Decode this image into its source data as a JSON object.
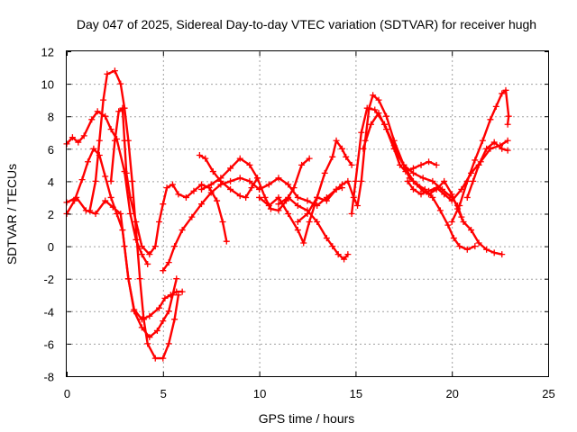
{
  "chart_data": {
    "type": "scatter",
    "marker": "plus",
    "title": "Day 047 of 2025, Sidereal Day-to-day VTEC variation (SDTVAR) for receiver hugh",
    "xlabel": "GPS time / hours",
    "ylabel": "SDTVAR / TECUs",
    "xlim": [
      0,
      25
    ],
    "ylim": [
      -8,
      12
    ],
    "xticks": [
      0,
      5,
      10,
      15,
      20,
      25
    ],
    "yticks": [
      -8,
      -6,
      -4,
      -2,
      0,
      2,
      4,
      6,
      8,
      10,
      12
    ],
    "grid": true,
    "color": "#ff0000",
    "series": [
      {
        "name": "trace-1",
        "points": [
          [
            0.0,
            6.3
          ],
          [
            0.3,
            6.7
          ],
          [
            0.6,
            6.4
          ],
          [
            0.9,
            6.8
          ],
          [
            1.3,
            7.8
          ],
          [
            1.6,
            8.3
          ],
          [
            2.0,
            8.0
          ],
          [
            2.3,
            7.2
          ],
          [
            2.6,
            6.6
          ],
          [
            3.0,
            4.6
          ],
          [
            3.3,
            2.0
          ],
          [
            3.6,
            0.4
          ],
          [
            3.9,
            -0.5
          ],
          [
            4.2,
            -1.1
          ]
        ]
      },
      {
        "name": "trace-2",
        "points": [
          [
            0.0,
            2.0
          ],
          [
            0.4,
            2.8
          ],
          [
            0.8,
            4.1
          ],
          [
            1.1,
            5.2
          ],
          [
            1.4,
            6.0
          ],
          [
            1.7,
            5.6
          ],
          [
            2.0,
            4.3
          ],
          [
            2.3,
            3.0
          ],
          [
            2.6,
            2.0
          ],
          [
            2.9,
            1.0
          ],
          [
            3.2,
            -2.0
          ],
          [
            3.5,
            -3.9
          ],
          [
            3.9,
            -4.5
          ],
          [
            4.3,
            -4.3
          ],
          [
            4.8,
            -3.8
          ],
          [
            5.1,
            -3.2
          ],
          [
            5.4,
            -3.0
          ],
          [
            5.7,
            -2.8
          ],
          [
            6.0,
            -2.8
          ]
        ]
      },
      {
        "name": "trace-3",
        "points": [
          [
            0.0,
            2.7
          ],
          [
            0.5,
            3.0
          ],
          [
            1.0,
            2.2
          ],
          [
            1.5,
            2.0
          ],
          [
            2.0,
            2.8
          ],
          [
            2.4,
            2.4
          ],
          [
            2.8,
            2.0
          ],
          [
            3.0,
            0.0
          ],
          [
            3.2,
            -2.0
          ],
          [
            3.5,
            -4.0
          ],
          [
            3.9,
            -5.0
          ],
          [
            4.3,
            -5.6
          ],
          [
            4.7,
            -5.2
          ],
          [
            5.0,
            -4.6
          ],
          [
            5.3,
            -4.0
          ],
          [
            5.5,
            -3.0
          ],
          [
            5.7,
            -2.0
          ]
        ]
      },
      {
        "name": "trace-4",
        "points": [
          [
            1.2,
            2.2
          ],
          [
            1.5,
            4.0
          ],
          [
            1.7,
            6.5
          ],
          [
            1.9,
            9.0
          ],
          [
            2.1,
            10.6
          ],
          [
            2.5,
            10.8
          ],
          [
            2.8,
            10.0
          ],
          [
            3.0,
            8.5
          ],
          [
            3.2,
            6.5
          ],
          [
            3.4,
            4.0
          ],
          [
            3.6,
            1.0
          ],
          [
            3.8,
            -2.0
          ],
          [
            4.0,
            -4.5
          ],
          [
            4.2,
            -6.0
          ],
          [
            4.6,
            -6.9
          ],
          [
            5.0,
            -6.9
          ],
          [
            5.3,
            -6.0
          ],
          [
            5.6,
            -4.5
          ],
          [
            5.8,
            -3.0
          ]
        ]
      },
      {
        "name": "trace-5",
        "points": [
          [
            2.3,
            4.0
          ],
          [
            2.5,
            6.5
          ],
          [
            2.7,
            8.3
          ],
          [
            2.9,
            8.5
          ],
          [
            3.0,
            6.5
          ],
          [
            3.1,
            4.5
          ],
          [
            3.3,
            3.0
          ],
          [
            3.6,
            1.5
          ],
          [
            3.9,
            0.0
          ],
          [
            4.3,
            -0.5
          ],
          [
            4.6,
            0.0
          ],
          [
            4.8,
            1.5
          ],
          [
            5.0,
            2.6
          ],
          [
            5.2,
            3.6
          ],
          [
            5.5,
            3.8
          ],
          [
            5.8,
            3.2
          ],
          [
            6.2,
            3.0
          ],
          [
            6.6,
            3.4
          ],
          [
            7.0,
            3.8
          ],
          [
            7.4,
            3.6
          ],
          [
            7.8,
            2.8
          ],
          [
            8.1,
            1.5
          ],
          [
            8.3,
            0.3
          ]
        ]
      },
      {
        "name": "trace-6",
        "points": [
          [
            5.0,
            -1.5
          ],
          [
            5.3,
            -1.0
          ],
          [
            5.6,
            0.0
          ],
          [
            6.0,
            1.0
          ],
          [
            6.5,
            1.8
          ],
          [
            7.0,
            2.6
          ],
          [
            7.5,
            3.3
          ],
          [
            8.0,
            3.8
          ],
          [
            8.5,
            4.0
          ],
          [
            9.0,
            4.2
          ],
          [
            9.5,
            4.0
          ],
          [
            10.0,
            3.5
          ],
          [
            10.5,
            3.8
          ],
          [
            11.0,
            4.2
          ],
          [
            11.5,
            3.8
          ],
          [
            12.0,
            3.0
          ],
          [
            12.5,
            2.8
          ],
          [
            13.0,
            2.5
          ],
          [
            13.5,
            3.0
          ],
          [
            14.0,
            3.5
          ],
          [
            14.3,
            3.6
          ]
        ]
      },
      {
        "name": "trace-7",
        "points": [
          [
            6.9,
            5.6
          ],
          [
            7.2,
            5.4
          ],
          [
            7.6,
            4.6
          ],
          [
            8.0,
            4.0
          ],
          [
            8.5,
            3.5
          ],
          [
            9.0,
            3.1
          ],
          [
            9.3,
            3.0
          ],
          [
            9.6,
            3.6
          ],
          [
            9.9,
            4.2
          ]
        ]
      },
      {
        "name": "trace-8",
        "points": [
          [
            7.0,
            3.5
          ],
          [
            7.5,
            3.8
          ],
          [
            8.0,
            4.2
          ],
          [
            8.5,
            4.8
          ],
          [
            9.0,
            5.4
          ],
          [
            9.5,
            5.0
          ],
          [
            9.9,
            4.2
          ],
          [
            10.3,
            3.0
          ],
          [
            10.6,
            2.3
          ],
          [
            11.0,
            2.2
          ],
          [
            11.4,
            2.8
          ],
          [
            11.8,
            3.6
          ],
          [
            12.2,
            5.0
          ],
          [
            12.6,
            5.4
          ]
        ]
      },
      {
        "name": "trace-9",
        "points": [
          [
            10.0,
            3.0
          ],
          [
            10.5,
            2.5
          ],
          [
            11.0,
            3.0
          ],
          [
            11.5,
            2.0
          ],
          [
            12.0,
            1.0
          ],
          [
            12.3,
            0.2
          ],
          [
            12.6,
            1.5
          ],
          [
            13.0,
            3.0
          ],
          [
            13.4,
            4.5
          ],
          [
            13.8,
            5.5
          ],
          [
            14.0,
            6.5
          ],
          [
            14.3,
            6.0
          ],
          [
            14.5,
            5.5
          ],
          [
            14.8,
            5.0
          ]
        ]
      },
      {
        "name": "trace-10",
        "points": [
          [
            11.0,
            2.6
          ],
          [
            11.5,
            3.0
          ],
          [
            12.0,
            2.5
          ],
          [
            12.5,
            2.2
          ],
          [
            13.0,
            1.5
          ],
          [
            13.5,
            0.5
          ],
          [
            13.8,
            0.0
          ],
          [
            14.1,
            -0.5
          ],
          [
            14.4,
            -0.8
          ],
          [
            14.6,
            -0.5
          ]
        ]
      },
      {
        "name": "trace-11",
        "points": [
          [
            12.0,
            1.5
          ],
          [
            12.5,
            2.0
          ],
          [
            13.0,
            3.0
          ],
          [
            13.5,
            2.8
          ],
          [
            14.0,
            3.5
          ],
          [
            14.3,
            3.8
          ],
          [
            14.6,
            4.0
          ],
          [
            14.9,
            3.0
          ],
          [
            15.1,
            2.5
          ],
          [
            15.3,
            4.0
          ],
          [
            15.5,
            6.5
          ],
          [
            15.7,
            8.5
          ],
          [
            15.9,
            9.3
          ],
          [
            16.2,
            9.0
          ],
          [
            16.6,
            8.0
          ],
          [
            17.0,
            6.5
          ],
          [
            17.5,
            5.0
          ],
          [
            18.0,
            4.5
          ],
          [
            18.5,
            4.2
          ],
          [
            19.0,
            4.0
          ],
          [
            19.5,
            3.5
          ],
          [
            20.0,
            3.0
          ],
          [
            20.3,
            2.5
          ],
          [
            20.5,
            1.8
          ]
        ]
      },
      {
        "name": "trace-12",
        "points": [
          [
            14.8,
            2.0
          ],
          [
            15.0,
            4.0
          ],
          [
            15.3,
            7.0
          ],
          [
            15.6,
            8.5
          ],
          [
            16.0,
            8.4
          ],
          [
            16.5,
            7.5
          ],
          [
            17.0,
            6.0
          ],
          [
            17.3,
            5.0
          ],
          [
            17.6,
            4.6
          ],
          [
            18.0,
            4.8
          ],
          [
            18.4,
            5.0
          ],
          [
            18.8,
            5.2
          ],
          [
            19.2,
            5.0
          ]
        ]
      },
      {
        "name": "trace-13",
        "points": [
          [
            15.4,
            6.0
          ],
          [
            15.8,
            7.5
          ],
          [
            16.2,
            8.2
          ],
          [
            16.6,
            7.2
          ],
          [
            17.0,
            6.0
          ],
          [
            17.5,
            5.0
          ],
          [
            18.0,
            4.0
          ],
          [
            18.5,
            3.4
          ],
          [
            18.8,
            3.2
          ],
          [
            19.2,
            3.5
          ],
          [
            19.6,
            4.0
          ],
          [
            20.0,
            3.2
          ],
          [
            20.3,
            2.3
          ],
          [
            20.6,
            1.5
          ],
          [
            21.0,
            1.0
          ],
          [
            21.4,
            0.2
          ],
          [
            21.8,
            -0.2
          ],
          [
            22.2,
            -0.4
          ],
          [
            22.6,
            -0.5
          ]
        ]
      },
      {
        "name": "trace-14",
        "points": [
          [
            16.5,
            7.5
          ],
          [
            17.0,
            6.2
          ],
          [
            17.5,
            5.0
          ],
          [
            17.8,
            4.2
          ],
          [
            18.2,
            3.8
          ],
          [
            18.6,
            3.5
          ],
          [
            19.0,
            3.0
          ],
          [
            19.4,
            2.2
          ],
          [
            19.8,
            1.3
          ],
          [
            20.1,
            0.5
          ],
          [
            20.4,
            0.0
          ],
          [
            20.8,
            -0.2
          ],
          [
            21.2,
            0.0
          ]
        ]
      },
      {
        "name": "trace-15",
        "points": [
          [
            17.7,
            4.0
          ],
          [
            18.0,
            3.5
          ],
          [
            18.4,
            3.2
          ],
          [
            18.8,
            3.4
          ],
          [
            19.2,
            3.6
          ],
          [
            19.6,
            3.2
          ],
          [
            20.0,
            2.8
          ],
          [
            20.5,
            3.5
          ],
          [
            21.0,
            4.5
          ],
          [
            21.5,
            5.2
          ],
          [
            22.0,
            6.0
          ],
          [
            22.5,
            6.2
          ],
          [
            22.9,
            6.5
          ]
        ]
      },
      {
        "name": "trace-16",
        "points": [
          [
            20.0,
            1.5
          ],
          [
            20.4,
            2.5
          ],
          [
            20.8,
            4.0
          ],
          [
            21.2,
            5.3
          ],
          [
            21.6,
            6.5
          ],
          [
            22.0,
            7.8
          ],
          [
            22.3,
            8.6
          ],
          [
            22.6,
            9.4
          ],
          [
            22.8,
            9.6
          ],
          [
            22.95,
            8.0
          ],
          [
            22.9,
            7.5
          ]
        ]
      },
      {
        "name": "trace-17",
        "points": [
          [
            20.8,
            3.0
          ],
          [
            21.1,
            4.0
          ],
          [
            21.4,
            5.0
          ],
          [
            21.8,
            6.0
          ],
          [
            22.2,
            6.4
          ],
          [
            22.6,
            6.0
          ],
          [
            22.9,
            5.9
          ]
        ]
      }
    ]
  }
}
